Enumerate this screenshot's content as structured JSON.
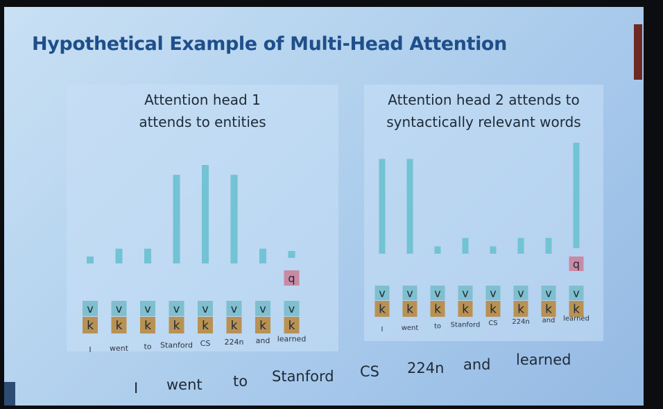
{
  "slide": {
    "title": "Hypothetical Example of Multi-Head Attention",
    "sentence": [
      "I",
      "went",
      "to",
      "Stanford",
      "CS",
      "224n",
      "and",
      "learned"
    ]
  },
  "colors": {
    "bar": "#72c3d3",
    "value_box": "#7fbfcf",
    "key_box": "#b89153",
    "query_box": "#c98aa4",
    "title": "#1f4f8a"
  },
  "chart_data": [
    {
      "type": "bar",
      "title": "Attention head 1 attends to entities",
      "title_lines": [
        "Attention head 1",
        "attends to entities"
      ],
      "categories": [
        "I",
        "went",
        "to",
        "Stanford",
        "CS",
        "224n",
        "and",
        "learned"
      ],
      "values": [
        0.07,
        0.15,
        0.15,
        0.9,
        1.0,
        0.9,
        0.15,
        0.07
      ],
      "ylim": [
        0,
        1
      ],
      "grid": false,
      "box_labels": {
        "value": "v",
        "key": "k",
        "query": "q"
      },
      "query_index": 7
    },
    {
      "type": "bar",
      "title": "Attention head 2 attends to syntactically relevant words",
      "title_lines": [
        "Attention head 2 attends to",
        "syntactically relevant words"
      ],
      "categories": [
        "I",
        "went",
        "to",
        "Stanford",
        "CS",
        "224n",
        "and",
        "learned"
      ],
      "values": [
        0.9,
        0.9,
        0.07,
        0.15,
        0.07,
        0.15,
        0.15,
        1.0
      ],
      "ylim": [
        0,
        1
      ],
      "grid": false,
      "box_labels": {
        "value": "v",
        "key": "k",
        "query": "q"
      },
      "query_index": 7
    }
  ]
}
